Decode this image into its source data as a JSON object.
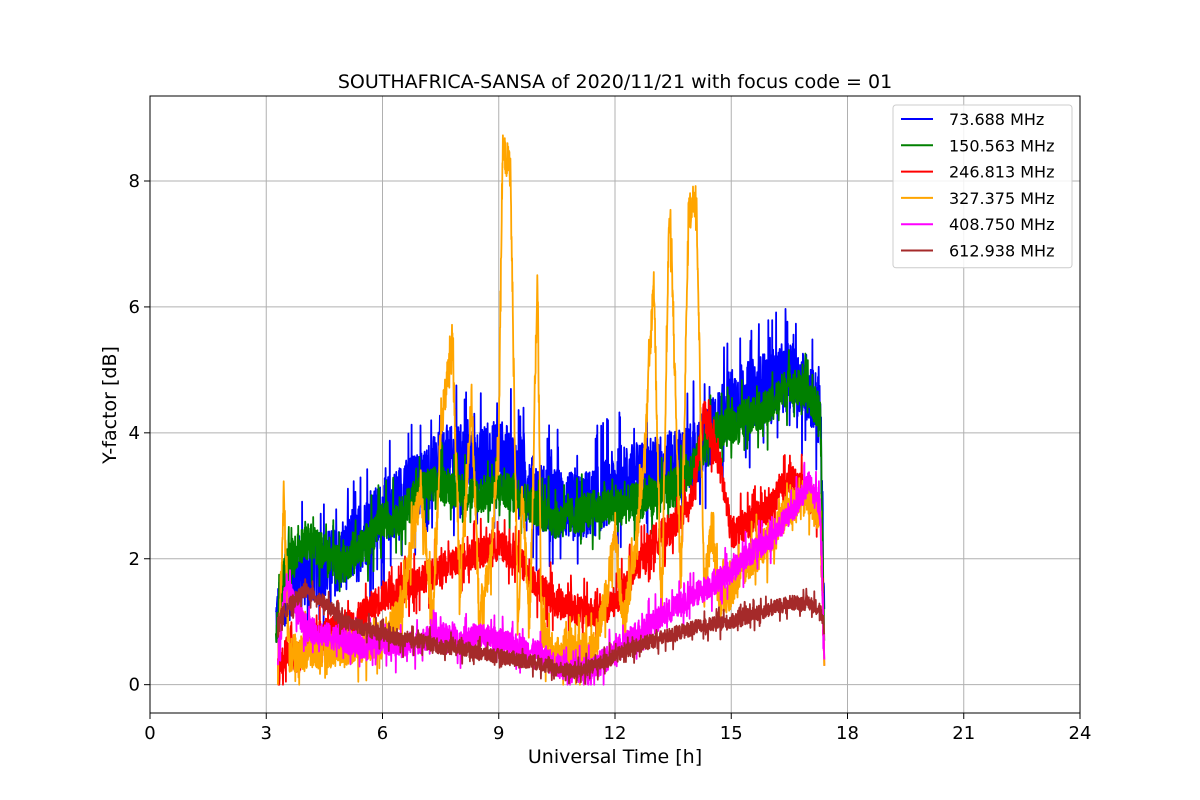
{
  "chart_data": {
    "type": "line",
    "title": "SOUTHAFRICA-SANSA of 2020/11/21 with focus code = 01",
    "xlabel": "Universal Time [h]",
    "ylabel": "Y-factor [dB]",
    "xlim": [
      0,
      24
    ],
    "ylim": [
      -0.45,
      9.35
    ],
    "xticks": [
      0,
      3,
      6,
      9,
      12,
      15,
      18,
      21,
      24
    ],
    "xtick_labels": [
      "0",
      "3",
      "6",
      "9",
      "12",
      "15",
      "18",
      "21",
      "24"
    ],
    "yticks": [
      0,
      2,
      4,
      6,
      8
    ],
    "ytick_labels": [
      "0",
      "2",
      "4",
      "6",
      "8"
    ],
    "grid": true,
    "legend_position": "top-right",
    "series": [
      {
        "name": " 73.688 MHz",
        "color": "#0000ff",
        "noise": 0.55,
        "x": [
          3.25,
          3.5,
          4.0,
          4.5,
          5.0,
          5.5,
          6.0,
          6.5,
          7.0,
          7.5,
          8.0,
          8.5,
          9.0,
          9.5,
          10.0,
          10.5,
          11.0,
          11.5,
          12.0,
          12.5,
          13.0,
          13.5,
          14.0,
          14.5,
          15.0,
          15.5,
          16.0,
          16.5,
          17.0,
          17.3,
          17.4
        ],
        "y": [
          1.0,
          1.5,
          1.8,
          1.9,
          2.0,
          2.4,
          2.7,
          3.0,
          3.2,
          3.5,
          3.6,
          3.5,
          3.7,
          3.4,
          3.0,
          2.9,
          2.8,
          2.9,
          3.2,
          3.3,
          3.4,
          3.5,
          3.6,
          4.0,
          4.5,
          4.6,
          4.8,
          4.9,
          4.7,
          4.3,
          1.2
        ]
      },
      {
        "name": "150.563 MHz",
        "color": "#008000",
        "noise": 0.3,
        "x": [
          3.25,
          3.5,
          4.0,
          4.5,
          5.0,
          5.5,
          6.0,
          6.5,
          7.0,
          7.5,
          8.0,
          8.5,
          9.0,
          9.5,
          10.0,
          10.5,
          11.0,
          11.5,
          12.0,
          12.5,
          13.0,
          13.5,
          14.0,
          14.5,
          15.0,
          15.5,
          16.0,
          16.5,
          17.0,
          17.3,
          17.4
        ],
        "y": [
          0.8,
          1.9,
          2.3,
          2.1,
          1.9,
          2.2,
          2.6,
          2.7,
          3.1,
          3.2,
          3.1,
          3.0,
          3.1,
          3.0,
          2.8,
          2.6,
          2.7,
          2.8,
          2.8,
          2.9,
          3.0,
          3.1,
          3.5,
          4.0,
          4.1,
          4.3,
          4.4,
          4.8,
          4.6,
          4.3,
          0.7
        ]
      },
      {
        "name": "246.813 MHz",
        "color": "#ff0000",
        "noise": 0.25,
        "x": [
          3.3,
          3.5,
          3.8,
          4.2,
          4.5,
          5.0,
          5.5,
          6.0,
          6.5,
          7.0,
          7.5,
          8.0,
          8.5,
          9.0,
          9.5,
          10.0,
          10.5,
          11.0,
          11.5,
          12.0,
          12.5,
          13.0,
          13.5,
          14.0,
          14.3,
          14.7,
          15.0,
          15.5,
          16.0,
          16.5,
          17.0,
          17.3,
          17.4
        ],
        "y": [
          0.1,
          0.6,
          0.4,
          0.7,
          0.8,
          0.9,
          1.1,
          1.4,
          1.5,
          1.7,
          1.8,
          2.0,
          2.1,
          2.2,
          2.0,
          1.6,
          1.3,
          1.2,
          1.1,
          1.3,
          1.8,
          2.3,
          2.5,
          3.0,
          4.3,
          3.5,
          2.4,
          2.6,
          2.8,
          3.3,
          3.0,
          2.7,
          0.3
        ]
      },
      {
        "name": "327.375 MHz",
        "color": "#ffa500",
        "noise": 0.3,
        "x": [
          3.3,
          3.45,
          3.6,
          4.0,
          5.0,
          6.0,
          6.5,
          6.8,
          7.0,
          7.3,
          7.5,
          7.8,
          8.0,
          8.3,
          8.5,
          8.8,
          9.0,
          9.1,
          9.3,
          9.5,
          9.6,
          9.8,
          10.0,
          10.1,
          10.3,
          10.6,
          11.0,
          11.5,
          11.8,
          12.0,
          12.2,
          12.5,
          12.8,
          13.0,
          13.2,
          13.4,
          13.5,
          13.7,
          13.9,
          14.1,
          14.3,
          14.5,
          14.7,
          15.0,
          15.5,
          16.0,
          16.5,
          17.0,
          17.3,
          17.4
        ],
        "y": [
          0.1,
          3.0,
          0.5,
          0.5,
          0.6,
          0.7,
          1.2,
          2.5,
          3.0,
          1.0,
          4.0,
          5.5,
          1.5,
          4.5,
          1.0,
          2.0,
          4.0,
          8.5,
          8.2,
          0.8,
          3.0,
          1.0,
          6.5,
          0.8,
          0.6,
          0.4,
          0.5,
          0.6,
          1.5,
          2.5,
          1.0,
          2.0,
          4.0,
          6.5,
          1.0,
          7.5,
          6.0,
          1.5,
          7.5,
          7.8,
          1.5,
          2.5,
          1.3,
          1.5,
          2.0,
          2.3,
          2.8,
          3.0,
          2.7,
          0.3
        ]
      },
      {
        "name": "408.750 MHz",
        "color": "#ff00ff",
        "noise": 0.2,
        "x": [
          3.3,
          3.5,
          4.0,
          4.5,
          5.0,
          5.5,
          6.0,
          6.5,
          7.0,
          7.5,
          8.0,
          8.5,
          9.0,
          9.5,
          10.0,
          10.5,
          11.0,
          11.5,
          12.0,
          12.5,
          13.0,
          13.5,
          14.0,
          14.5,
          15.0,
          15.5,
          16.0,
          16.5,
          17.0,
          17.3,
          17.4
        ],
        "y": [
          0.4,
          1.6,
          0.9,
          0.8,
          0.7,
          0.6,
          0.7,
          0.6,
          0.7,
          0.8,
          0.7,
          0.8,
          0.7,
          0.6,
          0.5,
          0.3,
          0.2,
          0.3,
          0.5,
          0.8,
          1.0,
          1.2,
          1.4,
          1.6,
          1.8,
          2.1,
          2.3,
          2.7,
          3.2,
          2.8,
          0.4
        ]
      },
      {
        "name": "612.938 MHz",
        "color": "#a52a2a",
        "noise": 0.12,
        "x": [
          3.3,
          3.5,
          4.0,
          4.5,
          5.0,
          5.5,
          6.0,
          6.5,
          7.0,
          7.5,
          8.0,
          8.5,
          9.0,
          9.5,
          10.0,
          10.5,
          11.0,
          11.5,
          12.0,
          12.5,
          13.0,
          13.5,
          14.0,
          14.5,
          15.0,
          15.5,
          16.0,
          16.5,
          17.0,
          17.3,
          17.4
        ],
        "y": [
          1.0,
          1.2,
          1.5,
          1.3,
          1.0,
          0.9,
          0.8,
          0.7,
          0.7,
          0.6,
          0.6,
          0.5,
          0.45,
          0.4,
          0.35,
          0.25,
          0.2,
          0.3,
          0.45,
          0.6,
          0.7,
          0.8,
          0.9,
          0.95,
          1.0,
          1.1,
          1.2,
          1.3,
          1.3,
          1.2,
          0.8
        ]
      }
    ]
  }
}
